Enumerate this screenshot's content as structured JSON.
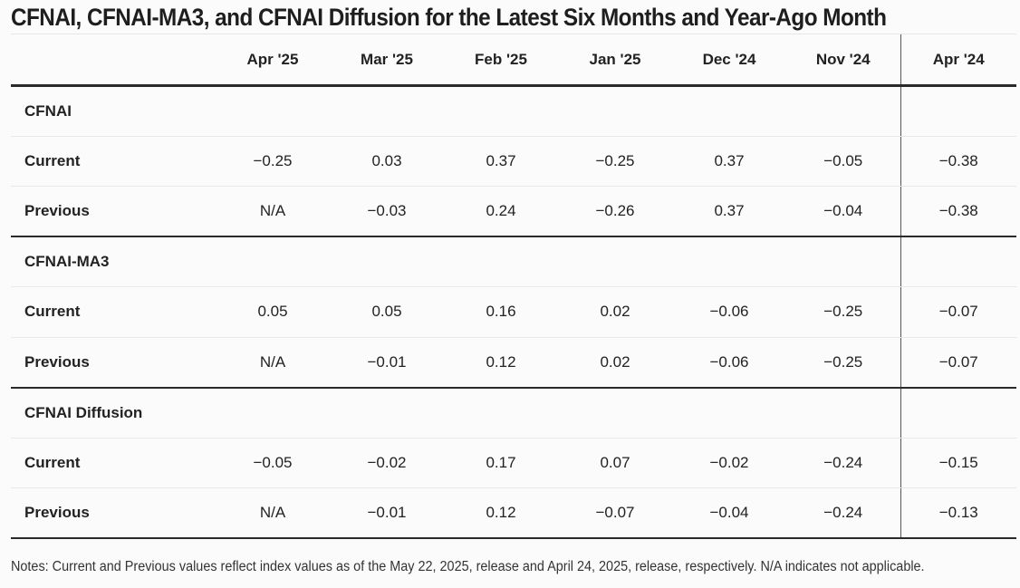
{
  "title": "CFNAI, CFNAI-MA3, and CFNAI Diffusion for the Latest Six Months and Year-Ago Month",
  "columns": [
    "Apr '25",
    "Mar '25",
    "Feb '25",
    "Jan '25",
    "Dec '24",
    "Nov '24",
    "Apr '24"
  ],
  "sections": [
    {
      "name": "CFNAI",
      "rows": [
        {
          "label": "Current",
          "values": [
            "−0.25",
            "0.03",
            "0.37",
            "−0.25",
            "0.37",
            "−0.05",
            "−0.38"
          ]
        },
        {
          "label": "Previous",
          "values": [
            "N/A",
            "−0.03",
            "0.24",
            "−0.26",
            "0.37",
            "−0.04",
            "−0.38"
          ]
        }
      ]
    },
    {
      "name": "CFNAI-MA3",
      "rows": [
        {
          "label": "Current",
          "values": [
            "0.05",
            "0.05",
            "0.16",
            "0.02",
            "−0.06",
            "−0.25",
            "−0.07"
          ]
        },
        {
          "label": "Previous",
          "values": [
            "N/A",
            "−0.01",
            "0.12",
            "0.02",
            "−0.06",
            "−0.25",
            "−0.07"
          ]
        }
      ]
    },
    {
      "name": "CFNAI Diffusion",
      "rows": [
        {
          "label": "Current",
          "values": [
            "−0.05",
            "−0.02",
            "0.17",
            "0.07",
            "−0.02",
            "−0.24",
            "−0.15"
          ]
        },
        {
          "label": "Previous",
          "values": [
            "N/A",
            "−0.01",
            "0.12",
            "−0.07",
            "−0.04",
            "−0.24",
            "−0.13"
          ]
        }
      ]
    }
  ],
  "notes": "Notes: Current and Previous values reflect index values as of the May 22, 2025, release and April 24, 2025, release, respectively. N/A indicates not applicable."
}
